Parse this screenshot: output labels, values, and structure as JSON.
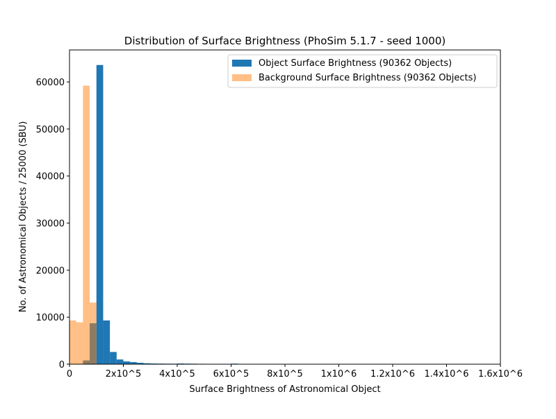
{
  "chart_data": {
    "type": "bar",
    "title": "Distribution of Surface Brightness (PhoSim 5.1.7 - seed 1000)",
    "xlabel": "Surface Brightness of Astronomical Object",
    "ylabel": "No. of Astronomical Objects / 25000 (SBU)",
    "xlim": [
      0,
      1600000
    ],
    "ylim": [
      0,
      66800
    ],
    "bin_width": 25000,
    "x_ticks": [
      {
        "value": 0,
        "label": "0"
      },
      {
        "value": 200000,
        "label": "2x10^5"
      },
      {
        "value": 400000,
        "label": "4x10^5"
      },
      {
        "value": 600000,
        "label": "6x10^5"
      },
      {
        "value": 800000,
        "label": "8x10^5"
      },
      {
        "value": 1000000,
        "label": "1x10^6"
      },
      {
        "value": 1200000,
        "label": "1.2x10^6"
      },
      {
        "value": 1400000,
        "label": "1.4x10^6"
      },
      {
        "value": 1600000,
        "label": "1.6x10^6"
      }
    ],
    "y_ticks": [
      {
        "value": 0,
        "label": "0"
      },
      {
        "value": 10000,
        "label": "10000"
      },
      {
        "value": 20000,
        "label": "20000"
      },
      {
        "value": 30000,
        "label": "30000"
      },
      {
        "value": 40000,
        "label": "40000"
      },
      {
        "value": 50000,
        "label": "50000"
      },
      {
        "value": 60000,
        "label": "60000"
      }
    ],
    "legend_position": "top-right",
    "grid": false,
    "series": [
      {
        "name": "Object Surface Brightness (90362 Objects)",
        "color": "#1f77b4",
        "opacity": 1,
        "bins": [
          {
            "x0": 50000,
            "value": 800
          },
          {
            "x0": 75000,
            "value": 8700
          },
          {
            "x0": 100000,
            "value": 63600
          },
          {
            "x0": 125000,
            "value": 9300
          },
          {
            "x0": 150000,
            "value": 2600
          },
          {
            "x0": 175000,
            "value": 1000
          },
          {
            "x0": 200000,
            "value": 600
          },
          {
            "x0": 225000,
            "value": 450
          },
          {
            "x0": 250000,
            "value": 300
          },
          {
            "x0": 275000,
            "value": 200
          },
          {
            "x0": 300000,
            "value": 150
          },
          {
            "x0": 325000,
            "value": 130
          },
          {
            "x0": 350000,
            "value": 110
          },
          {
            "x0": 375000,
            "value": 100
          },
          {
            "x0": 400000,
            "value": 150
          },
          {
            "x0": 425000,
            "value": 120
          },
          {
            "x0": 450000,
            "value": 100
          },
          {
            "x0": 475000,
            "value": 80
          },
          {
            "x0": 500000,
            "value": 60
          },
          {
            "x0": 525000,
            "value": 40
          },
          {
            "x0": 550000,
            "value": 30
          },
          {
            "x0": 575000,
            "value": 25
          },
          {
            "x0": 600000,
            "value": 120
          },
          {
            "x0": 625000,
            "value": 20
          },
          {
            "x0": 650000,
            "value": 15
          },
          {
            "x0": 675000,
            "value": 10
          }
        ]
      },
      {
        "name": "Background Surface Brightness (90362 Objects)",
        "color": "#ff7f0e",
        "opacity": 0.5,
        "bins": [
          {
            "x0": 0,
            "value": 9300
          },
          {
            "x0": 25000,
            "value": 8900
          },
          {
            "x0": 50000,
            "value": 59200
          },
          {
            "x0": 75000,
            "value": 13100
          }
        ]
      }
    ]
  }
}
